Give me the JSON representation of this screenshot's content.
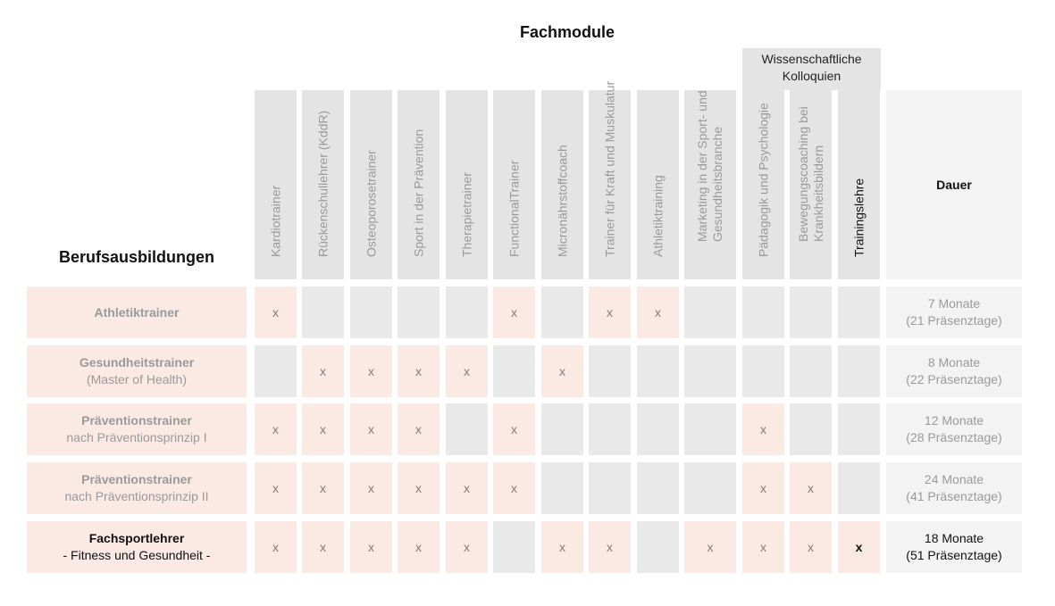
{
  "header": {
    "title": "Fachmodule",
    "group_label": "Wissenschaftliche Kolloquien",
    "row_header": "Berufsausbildungen",
    "duration_header": "Dauer"
  },
  "columns": [
    {
      "label": "Kardiotrainer"
    },
    {
      "label": "Rückenschullehrer (KddR)"
    },
    {
      "label": "Osteoporosetrainer"
    },
    {
      "label": "Sport in der Prävention"
    },
    {
      "label": "Therapietrainer"
    },
    {
      "label": "FunctionalTrainer"
    },
    {
      "label": "Micronährstoffcoach"
    },
    {
      "label": "Trainer für Kraft und Muskulatur"
    },
    {
      "label": "Athletiktraining"
    },
    {
      "label": "Marketing in der Sport- und Gesundheitsbranche"
    },
    {
      "label": "Pädagogik und Psychologie"
    },
    {
      "label": "Bewegungscoaching bei Krankheitsbildern"
    },
    {
      "label": "Trainingslehre"
    }
  ],
  "mark": "x",
  "rows": [
    {
      "name": "Athletiktrainer",
      "sub": "",
      "marks": [
        1,
        0,
        0,
        0,
        0,
        1,
        0,
        1,
        1,
        0,
        0,
        0,
        0
      ],
      "duration": "7 Monate",
      "days": "(21 Präsenztage)"
    },
    {
      "name": "Gesundheitstrainer",
      "sub": "(Master of Health)",
      "marks": [
        0,
        1,
        1,
        1,
        1,
        0,
        1,
        0,
        0,
        0,
        0,
        0,
        0
      ],
      "duration": "8 Monate",
      "days": "(22 Präsenztage)"
    },
    {
      "name": "Präventionstrainer",
      "sub": "nach Präventionsprinzip I",
      "marks": [
        1,
        1,
        1,
        1,
        0,
        1,
        0,
        0,
        0,
        0,
        1,
        0,
        0
      ],
      "duration": "12 Monate",
      "days": "(28 Präsenztage)"
    },
    {
      "name": "Präventionstrainer",
      "sub": "nach Präventionsprinzip II",
      "marks": [
        1,
        1,
        1,
        1,
        1,
        1,
        0,
        0,
        0,
        0,
        1,
        1,
        0
      ],
      "duration": "24 Monate",
      "days": "(41 Präsenztage)"
    },
    {
      "name": "Fachsportlehrer",
      "sub": "- Fitness und Gesundheit -",
      "marks": [
        1,
        1,
        1,
        1,
        1,
        0,
        1,
        1,
        0,
        1,
        1,
        1,
        1
      ],
      "duration": "18 Monate",
      "days": "(51 Präsenztage)"
    }
  ]
}
